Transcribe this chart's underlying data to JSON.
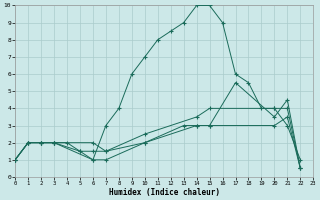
{
  "bg_color": "#cce8e8",
  "grid_color": "#aacccc",
  "line_color": "#1a6b5a",
  "xlim": [
    0,
    23
  ],
  "ylim": [
    0,
    10
  ],
  "xtick_vals": [
    0,
    1,
    2,
    3,
    4,
    5,
    6,
    7,
    8,
    9,
    10,
    11,
    12,
    13,
    14,
    15,
    16,
    17,
    18,
    19,
    20,
    21,
    22,
    23
  ],
  "ytick_vals": [
    0,
    1,
    2,
    3,
    4,
    5,
    6,
    7,
    8,
    9,
    10
  ],
  "xlabel": "Humidex (Indice chaleur)",
  "line1_x": [
    0,
    1,
    2,
    3,
    4,
    5,
    6,
    7,
    8,
    9,
    10,
    11,
    12,
    13,
    14,
    15,
    16,
    17,
    18,
    19,
    20,
    21,
    22
  ],
  "line1_y": [
    1,
    2,
    2,
    2,
    2,
    1.5,
    1,
    3,
    4,
    6,
    7,
    8,
    8.5,
    9,
    10,
    10,
    9,
    6,
    5.5,
    4,
    4,
    3,
    1
  ],
  "line2_x": [
    0,
    1,
    2,
    3,
    6,
    7,
    10,
    14,
    15,
    17,
    20,
    21,
    22
  ],
  "line2_y": [
    1,
    2,
    2,
    2,
    1,
    1,
    2,
    3,
    3,
    5.5,
    3.5,
    4.5,
    0.5
  ],
  "line3_x": [
    0,
    1,
    2,
    3,
    6,
    7,
    10,
    14,
    15,
    20,
    21,
    22
  ],
  "line3_y": [
    1,
    2,
    2,
    2,
    2,
    1.5,
    2.5,
    3.5,
    4,
    4,
    4,
    0.5
  ],
  "line4_x": [
    0,
    1,
    2,
    3,
    5,
    6,
    7,
    10,
    13,
    14,
    15,
    20,
    21,
    22
  ],
  "line4_y": [
    1,
    2,
    2,
    2,
    1.5,
    1.5,
    1.5,
    2,
    3,
    3,
    3,
    3,
    3.5,
    0.5
  ]
}
